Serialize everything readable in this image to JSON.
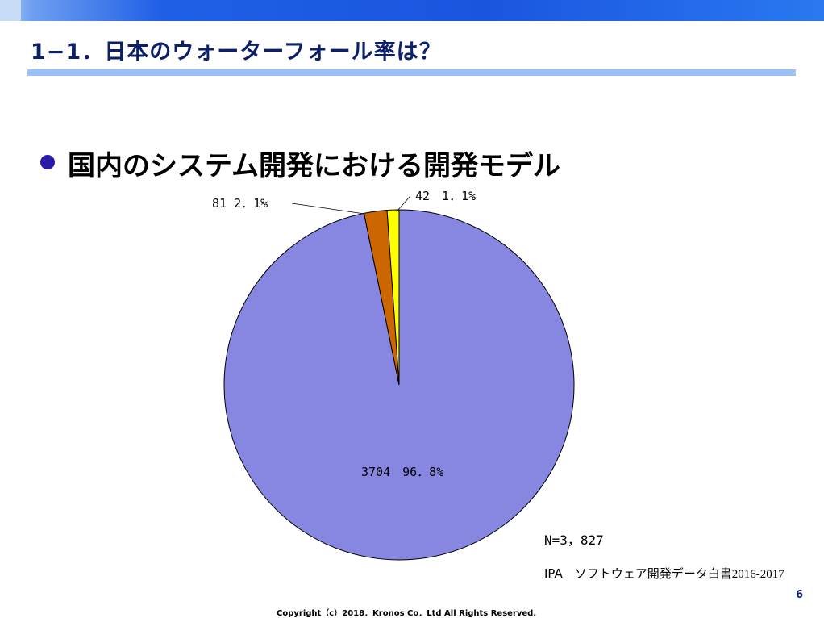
{
  "slide": {
    "title": "1−1．日本のウォーターフォール率は？",
    "bullet_text": "国内のシステム開発における開発モデル",
    "sample_size": "N=3，827",
    "source_prefix": "IPA　ソフトウェア開発データ白書",
    "source_year": "2016-2017",
    "copyright": "Copyright（c）2018．Kronos Co．Ltd All Rights Reserved.",
    "page_number": "6"
  },
  "colors": {
    "title": "#0b1f6b",
    "bullet": "#2b1aa8",
    "underline": "#99c3f7"
  },
  "chart_data": {
    "type": "pie",
    "total": 3827,
    "slices": [
      {
        "value": 3704,
        "percent": 96.8,
        "label": "3704　96．8%",
        "color": "#8787e1"
      },
      {
        "value": 81,
        "percent": 2.1,
        "label": "81 2．1%",
        "color": "#cc6600"
      },
      {
        "value": 42,
        "percent": 1.1,
        "label": "42　1．1%",
        "color": "#ffff00"
      }
    ],
    "start_angle_deg": 0,
    "direction": "clockwise"
  }
}
